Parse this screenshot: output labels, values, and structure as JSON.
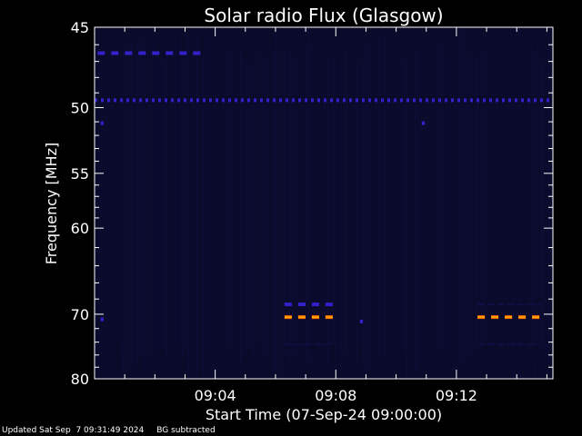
{
  "chart_data": {
    "type": "heatmap",
    "title": "Solar radio Flux (Glasgow)",
    "xlabel": "Start Time (07-Sep-24 09:00:00)",
    "ylabel": "Frequency [MHz]",
    "x_unit": "minutes after 09:00:00",
    "xlim": [
      0,
      15.2
    ],
    "ylim": [
      45,
      80
    ],
    "x_ticks": [
      {
        "value": 4,
        "label": "09:04"
      },
      {
        "value": 8,
        "label": "09:08"
      },
      {
        "value": 12,
        "label": "09:12"
      }
    ],
    "y_ticks": [
      {
        "value": 45,
        "label": "45"
      },
      {
        "value": 50,
        "label": "50"
      },
      {
        "value": 55,
        "label": "55"
      },
      {
        "value": 60,
        "label": "60"
      },
      {
        "value": 70,
        "label": "70"
      },
      {
        "value": 80,
        "label": "80"
      }
    ],
    "background_color": "#0a0a2a",
    "colors": {
      "low": "#10104a",
      "medium": "#3322cc",
      "high": "#ff6a00",
      "high_core": "#ffb000"
    },
    "features": [
      {
        "name": "constant line",
        "freq_mhz": 49.5,
        "x_range": [
          0,
          15.2
        ],
        "level": "medium",
        "style": "dashed"
      },
      {
        "name": "segment",
        "freq_mhz": 46.5,
        "x_range": [
          0.1,
          3.7
        ],
        "level": "medium",
        "style": "dashed"
      },
      {
        "name": "burst",
        "freq_mhz": 68.7,
        "x_range": [
          6.3,
          8.0
        ],
        "level": "medium",
        "style": "dashed"
      },
      {
        "name": "burst",
        "freq_mhz": 70.4,
        "x_range": [
          6.3,
          8.0
        ],
        "level": "high",
        "style": "dashed"
      },
      {
        "name": "burst",
        "freq_mhz": 74.3,
        "x_range": [
          6.3,
          8.0
        ],
        "level": "low",
        "style": "dashed"
      },
      {
        "name": "burst",
        "freq_mhz": 68.7,
        "x_range": [
          12.7,
          14.8
        ],
        "level": "low",
        "style": "dashed"
      },
      {
        "name": "burst",
        "freq_mhz": 70.4,
        "x_range": [
          12.7,
          14.8
        ],
        "level": "high",
        "style": "dashed"
      },
      {
        "name": "burst",
        "freq_mhz": 74.3,
        "x_range": [
          12.7,
          14.8
        ],
        "level": "low",
        "style": "dashed"
      },
      {
        "name": "blip",
        "freq_mhz": 70.7,
        "x_range": [
          0.2,
          0.3
        ],
        "level": "medium",
        "style": "solid"
      },
      {
        "name": "blip",
        "freq_mhz": 71.0,
        "x_range": [
          8.8,
          8.9
        ],
        "level": "medium",
        "style": "solid"
      },
      {
        "name": "blip",
        "freq_mhz": 51.1,
        "x_range": [
          0.2,
          0.3
        ],
        "level": "medium",
        "style": "solid"
      },
      {
        "name": "blip",
        "freq_mhz": 51.1,
        "x_range": [
          10.85,
          10.95
        ],
        "level": "medium",
        "style": "solid"
      }
    ]
  },
  "footer": {
    "updated": "Updated Sat Sep  7 09:31:49 2024",
    "note": "BG subtracted"
  }
}
